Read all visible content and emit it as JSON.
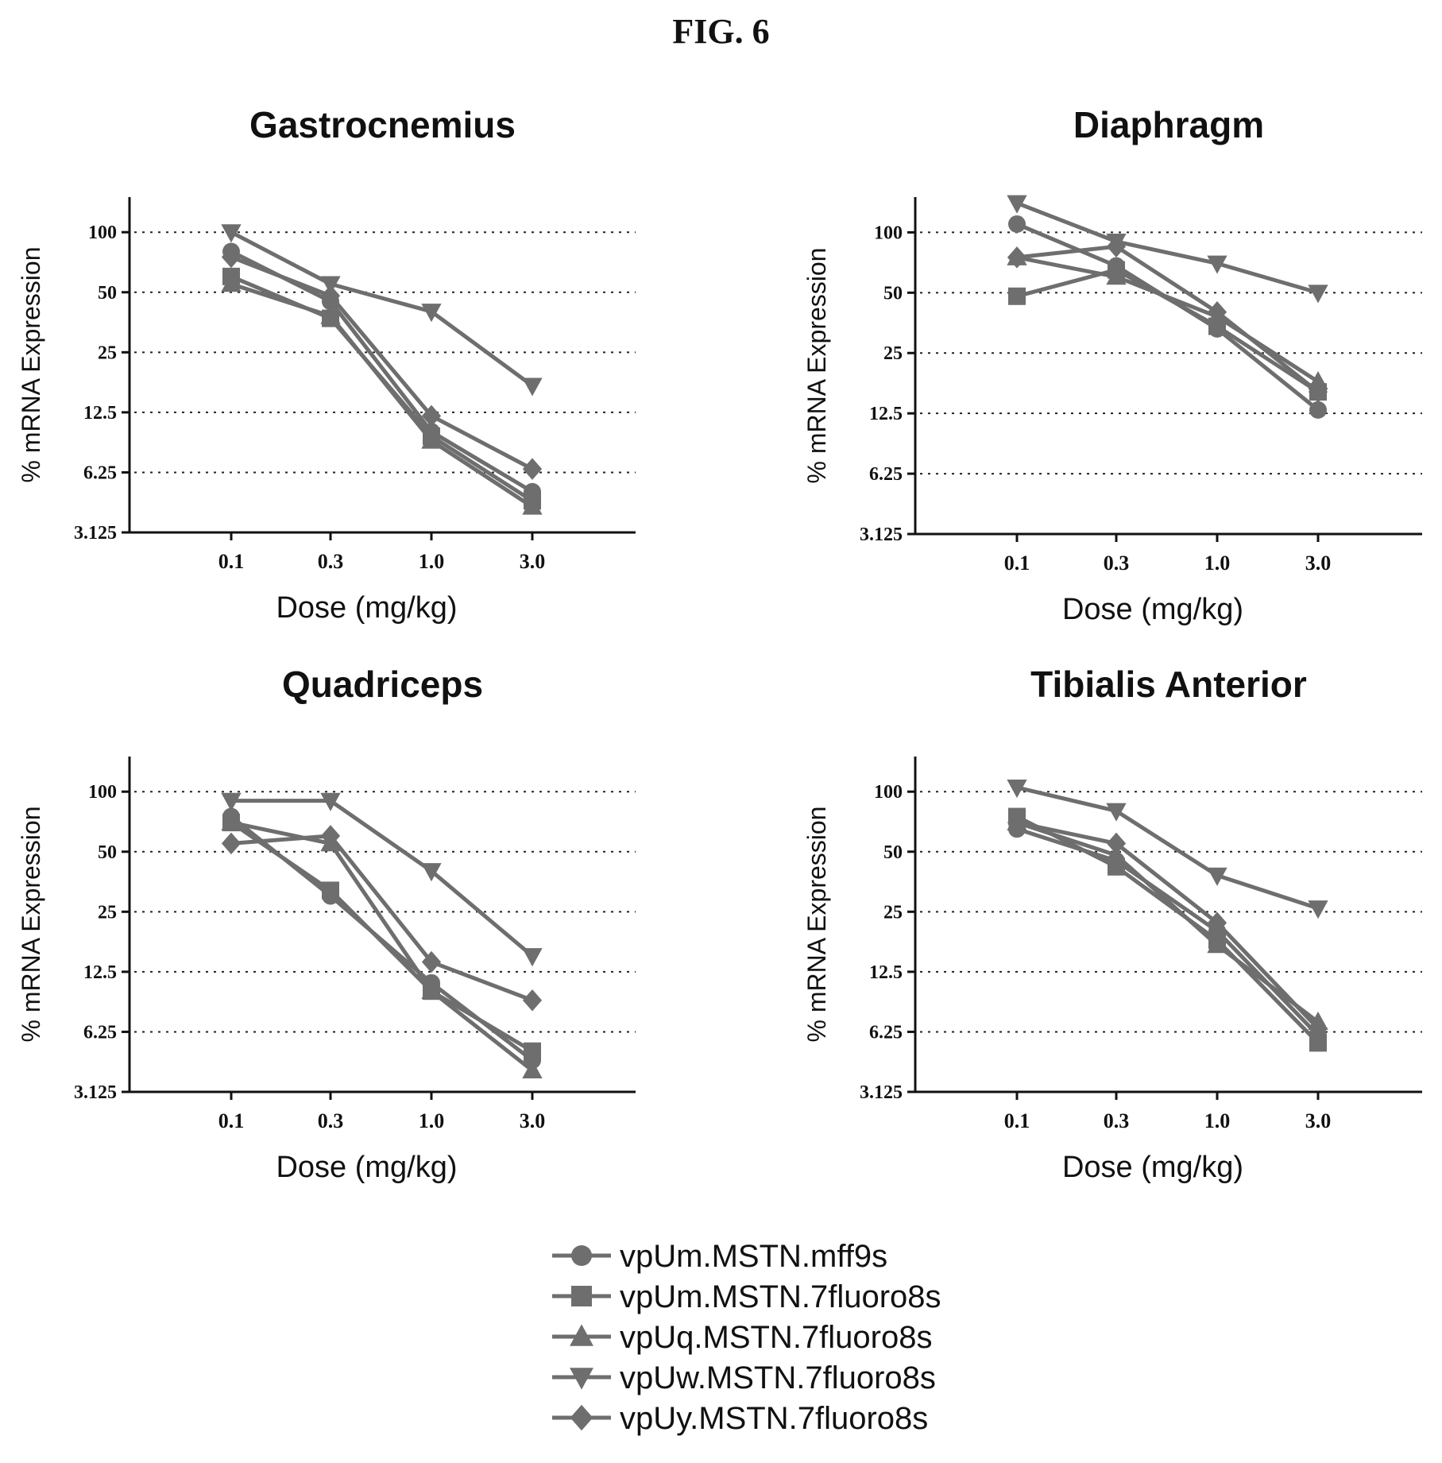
{
  "figure_title": "FIG. 6",
  "series_names": [
    "vpUm.MSTN.mff9s",
    "vpUm.MSTN.7fluoro8s",
    "vpUq.MSTN.7fluoro8s",
    "vpUw.MSTN.7fluoro8s",
    "vpUy.MSTN.7fluoro8s"
  ],
  "series_markers": [
    "circle",
    "square",
    "triangle-up",
    "triangle-down",
    "diamond"
  ],
  "series_color": "#6e6e6e",
  "grid_color": "#222222",
  "chart_data": [
    {
      "type": "line",
      "title": "Gastrocnemius",
      "xlabel": "Dose (mg/kg)",
      "ylabel": "% mRNA Expression",
      "x": [
        0.1,
        0.3,
        1.0,
        3.0
      ],
      "x_tick_labels": [
        "0.1",
        "0.3",
        "1.0",
        "3.0"
      ],
      "y_scale": "log2",
      "yticks": [
        3.125,
        6.25,
        12.5,
        25,
        50,
        100
      ],
      "y_tick_labels": [
        "3.125",
        "6.25",
        "12.5",
        "25",
        "50",
        "100"
      ],
      "ylim": [
        3.125,
        150
      ],
      "grid": "horizontal dotted",
      "series": [
        {
          "name": "vpUm.MSTN.mff9s",
          "values": [
            80,
            45,
            10,
            5
          ]
        },
        {
          "name": "vpUm.MSTN.7fluoro8s",
          "values": [
            60,
            37,
            9.5,
            4.5
          ]
        },
        {
          "name": "vpUq.MSTN.7fluoro8s",
          "values": [
            55,
            38,
            9,
            4.2
          ]
        },
        {
          "name": "vpUw.MSTN.7fluoro8s",
          "values": [
            100,
            55,
            40,
            17
          ]
        },
        {
          "name": "vpUy.MSTN.7fluoro8s",
          "values": [
            75,
            48,
            12,
            6.5
          ]
        }
      ]
    },
    {
      "type": "line",
      "title": "Diaphragm",
      "xlabel": "Dose (mg/kg)",
      "ylabel": "% mRNA Expression",
      "x": [
        0.1,
        0.3,
        1.0,
        3.0
      ],
      "x_tick_labels": [
        "0.1",
        "0.3",
        "1.0",
        "3.0"
      ],
      "y_scale": "log2",
      "yticks": [
        3.125,
        6.25,
        12.5,
        25,
        50,
        100
      ],
      "y_tick_labels": [
        "3.125",
        "6.25",
        "12.5",
        "25",
        "50",
        "100"
      ],
      "ylim": [
        3.125,
        150
      ],
      "grid": "horizontal dotted",
      "series": [
        {
          "name": "vpUm.MSTN.mff9s",
          "values": [
            110,
            68,
            33,
            13
          ]
        },
        {
          "name": "vpUm.MSTN.7fluoro8s",
          "values": [
            48,
            65,
            34,
            16
          ]
        },
        {
          "name": "vpUq.MSTN.7fluoro8s",
          "values": [
            75,
            60,
            38,
            18
          ]
        },
        {
          "name": "vpUw.MSTN.7fluoro8s",
          "values": [
            140,
            90,
            70,
            50
          ]
        },
        {
          "name": "vpUy.MSTN.7fluoro8s",
          "values": [
            75,
            85,
            40,
            16
          ]
        }
      ]
    },
    {
      "type": "line",
      "title": "Quadriceps",
      "xlabel": "Dose (mg/kg)",
      "ylabel": "% mRNA Expression",
      "x": [
        0.1,
        0.3,
        1.0,
        3.0
      ],
      "x_tick_labels": [
        "0.1",
        "0.3",
        "1.0",
        "3.0"
      ],
      "y_scale": "log2",
      "yticks": [
        3.125,
        6.25,
        12.5,
        25,
        50,
        100
      ],
      "y_tick_labels": [
        "3.125",
        "6.25",
        "12.5",
        "25",
        "50",
        "100"
      ],
      "ylim": [
        3.125,
        150
      ],
      "grid": "horizontal dotted",
      "series": [
        {
          "name": "vpUm.MSTN.mff9s",
          "values": [
            75,
            30,
            11,
            4.5
          ]
        },
        {
          "name": "vpUm.MSTN.7fluoro8s",
          "values": [
            70,
            32,
            10,
            5
          ]
        },
        {
          "name": "vpUq.MSTN.7fluoro8s",
          "values": [
            70,
            55,
            10,
            4
          ]
        },
        {
          "name": "vpUw.MSTN.7fluoro8s",
          "values": [
            90,
            90,
            40,
            15
          ]
        },
        {
          "name": "vpUy.MSTN.7fluoro8s",
          "values": [
            55,
            60,
            14,
            9
          ]
        }
      ]
    },
    {
      "type": "line",
      "title": "Tibialis Anterior",
      "xlabel": "Dose (mg/kg)",
      "ylabel": "% mRNA Expression",
      "x": [
        0.1,
        0.3,
        1.0,
        3.0
      ],
      "x_tick_labels": [
        "0.1",
        "0.3",
        "1.0",
        "3.0"
      ],
      "y_scale": "log2",
      "yticks": [
        3.125,
        6.25,
        12.5,
        25,
        50,
        100
      ],
      "y_tick_labels": [
        "3.125",
        "6.25",
        "12.5",
        "25",
        "50",
        "100"
      ],
      "ylim": [
        3.125,
        150
      ],
      "grid": "horizontal dotted",
      "series": [
        {
          "name": "vpUm.MSTN.mff9s",
          "values": [
            65,
            45,
            20,
            6
          ]
        },
        {
          "name": "vpUm.MSTN.7fluoro8s",
          "values": [
            75,
            42,
            18,
            5.5
          ]
        },
        {
          "name": "vpUq.MSTN.7fluoro8s",
          "values": [
            70,
            48,
            17,
            7
          ]
        },
        {
          "name": "vpUw.MSTN.7fluoro8s",
          "values": [
            105,
            80,
            38,
            26
          ]
        },
        {
          "name": "vpUy.MSTN.7fluoro8s",
          "values": [
            70,
            55,
            22,
            6.5
          ]
        }
      ]
    }
  ]
}
